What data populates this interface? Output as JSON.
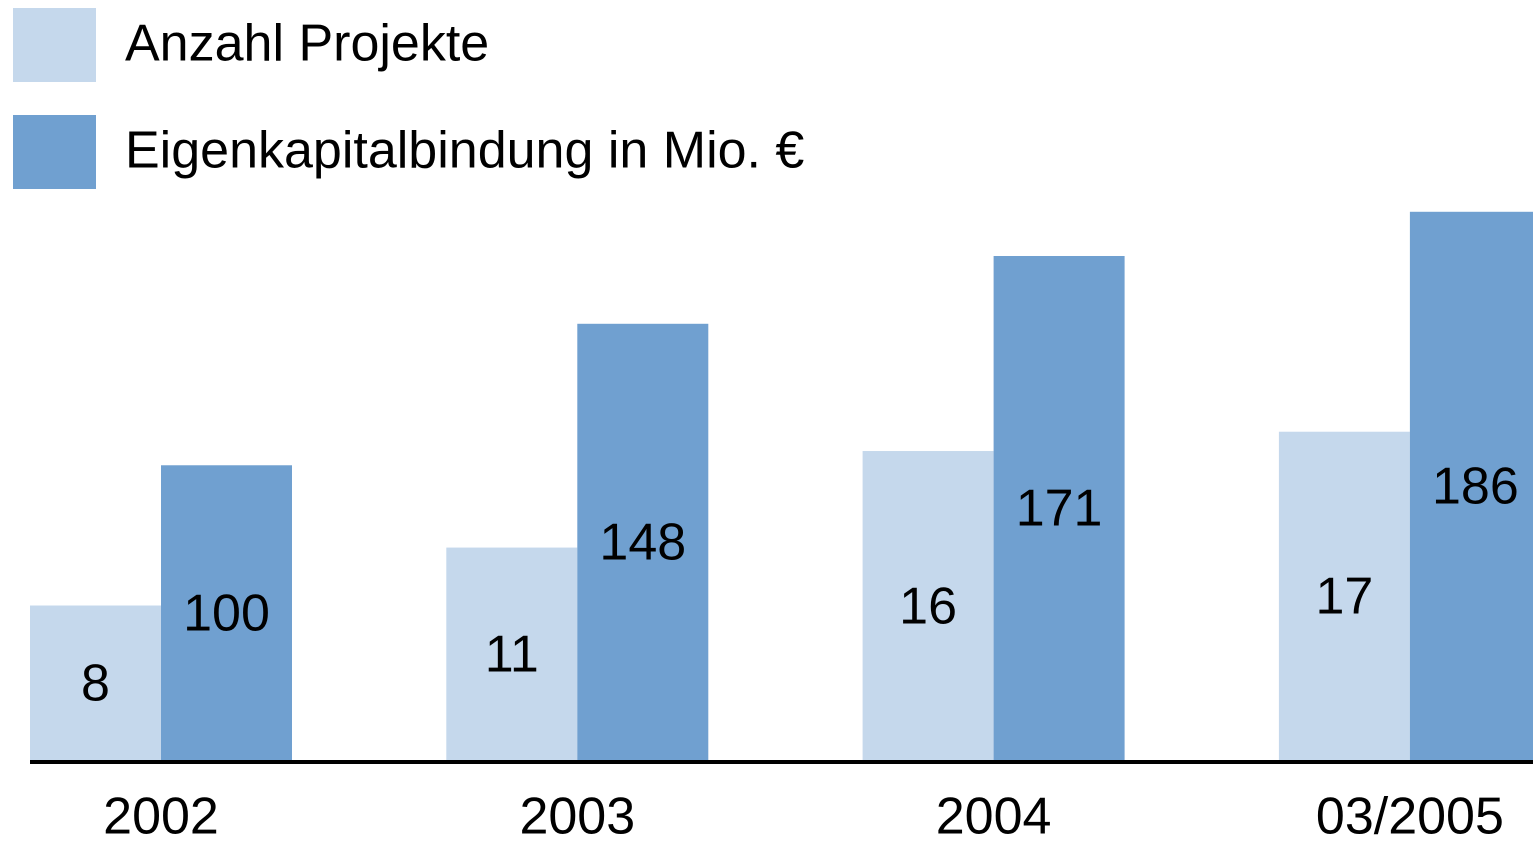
{
  "chart_data": {
    "type": "bar",
    "categories": [
      "2002",
      "2003",
      "2004",
      "03/2005"
    ],
    "series": [
      {
        "name": "Anzahl Projekte",
        "color": "#c5d8ec",
        "values": [
          8,
          11,
          16,
          17
        ]
      },
      {
        "name": "Eigenkapitalbindung in Mio. €",
        "color": "#70a0d0",
        "values": [
          100,
          148,
          171,
          186
        ],
        "axis": "y2"
      }
    ],
    "ylim": [
      0,
      29
    ],
    "y2lim": [
      0,
      190
    ],
    "legend": "top-left"
  }
}
